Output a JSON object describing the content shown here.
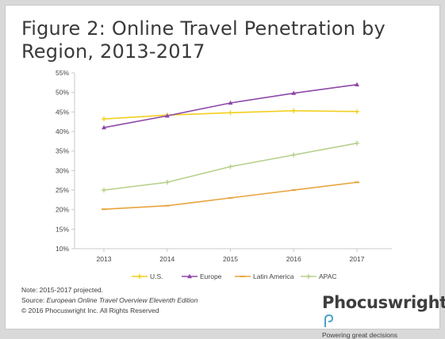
{
  "chart_data": {
    "type": "line",
    "title": "Figure 2: Online Travel Penetration by Region, 2013-2017",
    "categories": [
      "2013",
      "2014",
      "2015",
      "2016",
      "2017"
    ],
    "ylim": [
      10,
      55
    ],
    "yticks": [
      "10%",
      "15%",
      "20%",
      "25%",
      "30%",
      "35%",
      "40%",
      "45%",
      "50%",
      "55%"
    ],
    "ytick_values": [
      10,
      15,
      20,
      25,
      30,
      35,
      40,
      45,
      50,
      55
    ],
    "grid": false,
    "legend_position": "bottom",
    "series": [
      {
        "name": "U.S.",
        "color": "#f2cf1f",
        "marker": "cross",
        "values": [
          43.2,
          44.2,
          44.8,
          45.3,
          45.1
        ]
      },
      {
        "name": "Europe",
        "color": "#8e48a8",
        "marker": "triangle",
        "values": [
          41,
          44,
          47.3,
          49.8,
          52
        ]
      },
      {
        "name": "Latin America",
        "color": "#e8a33c",
        "marker": "dash",
        "values": [
          20.1,
          21,
          23,
          25,
          27
        ]
      },
      {
        "name": "APAC",
        "color": "#b6d08a",
        "marker": "cross",
        "values": [
          25,
          27,
          31,
          34,
          37
        ]
      }
    ]
  },
  "footer": {
    "note": "Note: 2015-2017 projected.",
    "source_prefix": "Source: ",
    "source_title": "European Online Travel Overview Eleventh Edition",
    "copyright": "© 2016 Phocuswright Inc. All Rights Reserved"
  },
  "logo": {
    "name": "Phocuswright",
    "tagline": "Powering great decisions"
  }
}
